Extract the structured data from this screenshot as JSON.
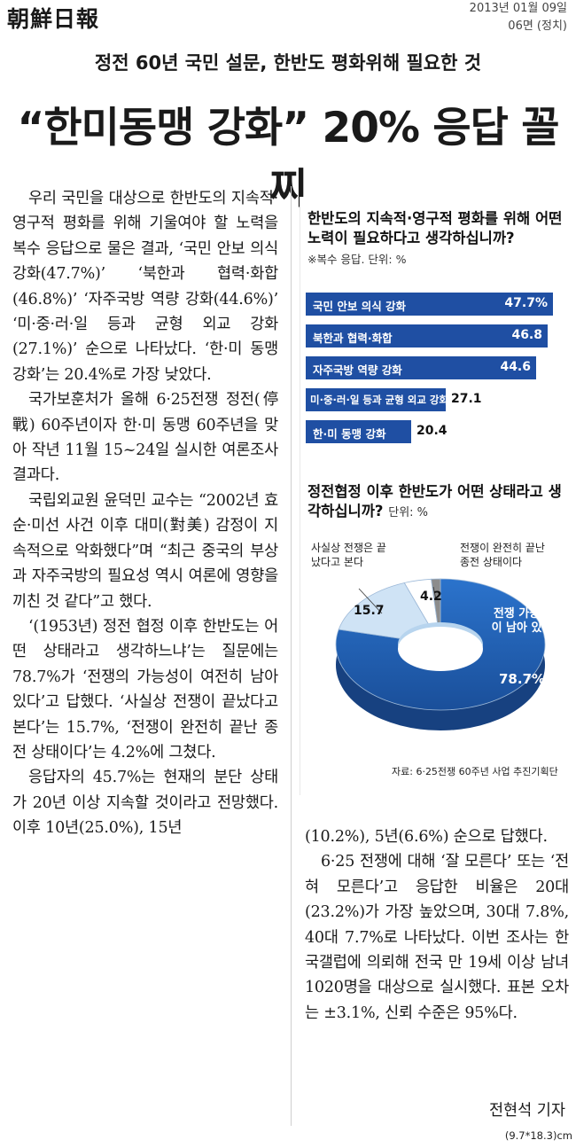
{
  "masthead": {
    "logo": "朝鮮日報",
    "date": "2013년 01월 09일",
    "page": "06면 (정치)"
  },
  "subhead": "정전 60년 국민 설문, 한반도 평화위해 필요한 것",
  "headline": "“한미동맹 강화” 20% 응답 꼴찌",
  "article": {
    "left_paragraphs": [
      "우리 국민을 대상으로 한반도의 지속적·영구적 평화를 위해 기울여야 할 노력을 복수 응답으로 물은 결과, ‘국민 안보 의식 강화(47.7%)’ ‘북한과 협력·화합(46.8%)’ ‘자주국방 역량 강화(44.6%)’ ‘미·중·러·일 등과 균형 외교 강화(27.1%)’ 순으로 나타났다. ‘한·미 동맹 강화’는 20.4%로 가장 낮았다.",
      "국가보훈처가 올해 6·25전쟁 정전(停戰) 60주년이자 한·미 동맹 60주년을 맞아 작년 11월 15~24일 실시한 여론조사 결과다.",
      "국립외교원 윤덕민 교수는 “2002년 효순·미선 사건 이후 대미(對美) 감정이 지속적으로 악화했다”며 “최근 중국의 부상과 자주국방의 필요성 역시 여론에 영향을 끼친 것 같다”고 했다.",
      "‘(1953년) 정전 협정 이후 한반도는 어떤 상태라고 생각하느냐’는 질문에는 78.7%가 ‘전쟁의 가능성이 여전히 남아 있다’고 답했다. ‘사실상 전쟁이 끝났다고 본다’는 15.7%, ‘전쟁이 완전히 끝난 종전 상태이다’는 4.2%에 그쳤다.",
      "응답자의 45.7%는 현재의 분단 상태가 20년 이상 지속할 것이라고 전망했다. 이후 10년(25.0%), 15년"
    ],
    "right_paragraphs": [
      "(10.2%), 5년(6.6%) 순으로 답했다.",
      "6·25 전쟁에 대해 ‘잘 모른다’ 또는 ‘전혀 모른다’고 응답한 비율은 20대(23.2%)가 가장 높았으며, 30대 7.8%, 40대 7.7%로 나타났다. 이번 조사는 한국갤럽에 의뢰해 전국 만 19세 이상 남녀 1020명을 대상으로 실시했다. 표본 오차는 ±3.1%, 신뢰 수준은 95%다."
    ],
    "reporter": "전현석 기자",
    "size_note": "(9.7*18.3)cm"
  },
  "chart_data": [
    {
      "type": "bar",
      "title": "한반도의 지속적·영구적 평화를 위해 어떤 노력이 필요하다고 생각하십니까?",
      "note": "※복수 응답. 단위: %",
      "categories": [
        "국민 안보 의식 강화",
        "북한과 협력·화합",
        "자주국방 역량 강화",
        "미·중·러·일 등과 균형 외교 강화",
        "한·미 동맹 강화"
      ],
      "values": [
        47.7,
        46.8,
        44.6,
        27.1,
        20.4
      ],
      "value_labels": [
        "47.7%",
        "46.8",
        "44.6",
        "27.1",
        "20.4"
      ],
      "orientation": "horizontal",
      "color": "#1f4fa3"
    },
    {
      "type": "pie",
      "title": "정전협정 이후 한반도가 어떤 상태라고 생각하십니까?",
      "unit": "단위: %",
      "labels": [
        "전쟁 가능성이 남아 있다",
        "사실상 전쟁은 끝났다고 본다",
        "전쟁이 완전히 끝난 종전 상태이다",
        ""
      ],
      "values": [
        78.7,
        15.7,
        4.2,
        1.4
      ],
      "value_labels": [
        "78.7%",
        "15.7",
        "4.2",
        ""
      ],
      "colors": [
        "#1f5fb8",
        "#cfe3f5",
        "#ffffff",
        "#8c8c8c"
      ],
      "donut": true,
      "source": "자료: 6·25전쟁 60주년 사업 추진기획단"
    }
  ]
}
